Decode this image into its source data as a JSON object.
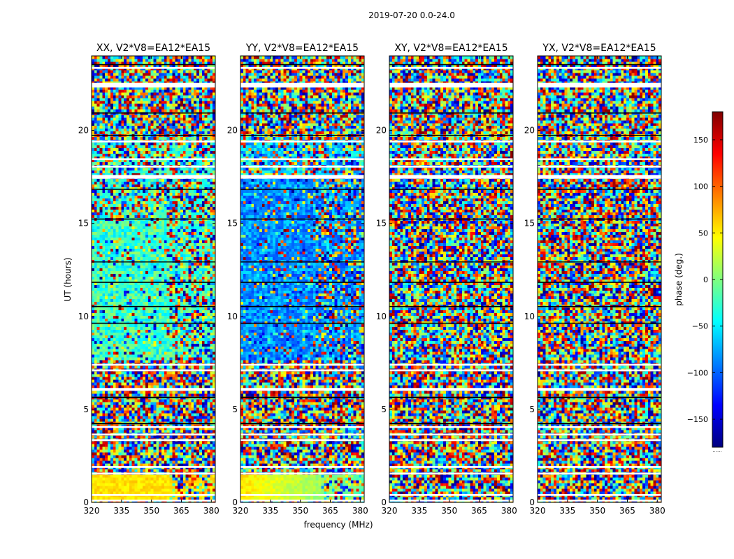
{
  "chart_data": {
    "type": "heatmap",
    "title": "2019-07-20 0.0-24.0",
    "xlabel": "frequency (MHz)",
    "ylabel": "UT (hours)",
    "xlim": [
      320,
      382
    ],
    "ylim": [
      0,
      24
    ],
    "xticks": [
      320,
      335,
      350,
      365,
      380
    ],
    "yticks": [
      0,
      5,
      10,
      15,
      20
    ],
    "colorbar": {
      "label": "phase (deg.)",
      "range": [
        -180,
        180
      ],
      "ticks": [
        -150,
        -100,
        -50,
        0,
        50,
        100,
        150
      ],
      "tick_labels": [
        "−150",
        "−100",
        "−50",
        "0",
        "50",
        "100",
        "150"
      ],
      "footer": "......",
      "colormap": [
        "#00007f",
        "#0000ff",
        "#007fff",
        "#00ffff",
        "#7fff7f",
        "#ffff00",
        "#ff7f00",
        "#ff0000",
        "#7f0000"
      ]
    },
    "panels": [
      {
        "name": "XX, V2*V8=EA12*EA15",
        "phase_character": "coherent: near 0 deg (green/cyan) 8-15 UT, about +60 deg (orange) 0-1.5 UT, noisy elsewhere"
      },
      {
        "name": "YY, V2*V8=EA12*EA15",
        "phase_character": "coherent: about -90 deg (blue) 8-17 UT, +60 to 0 deg 0-1.5 UT, noisy elsewhere"
      },
      {
        "name": "XY, V2*V8=EA12*EA15",
        "phase_character": "noise-like random phase across all times"
      },
      {
        "name": "YX, V2*V8=EA12*EA15",
        "phase_character": "noise-like random phase across all times"
      }
    ],
    "flagged_bands_hours": [
      [
        0.05,
        0.15
      ],
      [
        0.35,
        0.45
      ],
      [
        1.5,
        1.6
      ],
      [
        1.85,
        1.95
      ],
      [
        3.3,
        3.4
      ],
      [
        3.6,
        3.7
      ],
      [
        4.0,
        4.1
      ],
      [
        6.0,
        6.15
      ],
      [
        7.05,
        7.15
      ],
      [
        7.35,
        7.45
      ],
      [
        17.4,
        17.6
      ],
      [
        18.0,
        18.1
      ],
      [
        18.4,
        18.5
      ],
      [
        19.35,
        19.45
      ],
      [
        22.3,
        22.55
      ],
      [
        23.3,
        23.4
      ]
    ],
    "dark_bands_hours": [
      [
        4.2,
        4.28
      ],
      [
        5.6,
        5.68
      ],
      [
        9.6,
        9.66
      ],
      [
        10.5,
        10.56
      ],
      [
        11.8,
        11.86
      ],
      [
        12.9,
        12.95
      ],
      [
        15.2,
        15.26
      ],
      [
        16.8,
        16.86
      ],
      [
        19.7,
        19.76
      ],
      [
        20.9,
        20.96
      ],
      [
        23.5,
        23.56
      ]
    ]
  }
}
